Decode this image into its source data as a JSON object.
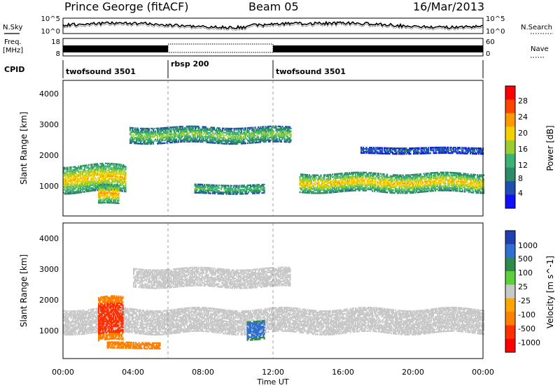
{
  "header": {
    "station": "Prince George (fitACF)",
    "beam": "Beam 05",
    "date": "16/Mar/2013"
  },
  "noise_panel": {
    "left_label": "N.Sky",
    "right_label": "N.Search",
    "left_ticks": [
      "10^5",
      "10^0"
    ],
    "right_ticks": [
      "10^5",
      "10^0"
    ]
  },
  "freq_panel": {
    "left_label_line1": "Freq.",
    "left_label_line2": "[MHz]",
    "left_ticks": [
      "18",
      "8"
    ],
    "right_label": "Nave",
    "right_ticks": [
      "60",
      "0"
    ]
  },
  "cpid_panel": {
    "label": "CPID",
    "segments": [
      {
        "name": "twofsound 3501",
        "start_hour": 0,
        "end_hour": 6
      },
      {
        "name": "rbsp 200",
        "start_hour": 6,
        "end_hour": 12
      },
      {
        "name": "twofsound 3501",
        "start_hour": 12,
        "end_hour": 24
      }
    ]
  },
  "chart_data": [
    {
      "type": "heatmap",
      "panel": "power",
      "ylabel": "Slant Range [km]",
      "ylim": [
        180,
        4600
      ],
      "yticks": [
        "1000",
        "2000",
        "3000",
        "4000"
      ],
      "xlim": [
        0,
        24
      ],
      "colorbar": {
        "label": "Power [dB]",
        "ticks": [
          "4",
          "8",
          "12",
          "16",
          "20",
          "24",
          "28"
        ],
        "colors": [
          "#1010ff",
          "#1f4fb3",
          "#2f8a6a",
          "#3cb371",
          "#9acd32",
          "#f5d000",
          "#ff9900",
          "#ff4500",
          "#ff0000"
        ]
      },
      "features": [
        {
          "hour_start": 0.0,
          "hour_end": 3.6,
          "range_center_km": 1400,
          "range_half_width_km": 450,
          "power_db": 24
        },
        {
          "hour_start": 2.0,
          "hour_end": 3.2,
          "range_center_km": 850,
          "range_half_width_km": 300,
          "power_db": 26
        },
        {
          "hour_start": 3.8,
          "hour_end": 13.0,
          "range_center_km": 2800,
          "range_half_width_km": 250,
          "power_db": 18
        },
        {
          "hour_start": 7.5,
          "hour_end": 11.5,
          "range_center_km": 1050,
          "range_half_width_km": 150,
          "power_db": 16
        },
        {
          "hour_start": 13.5,
          "hour_end": 24.0,
          "range_center_km": 1250,
          "range_half_width_km": 300,
          "power_db": 24
        },
        {
          "hour_start": 17.0,
          "hour_end": 24.0,
          "range_center_km": 2300,
          "range_half_width_km": 100,
          "power_db": 8
        }
      ]
    },
    {
      "type": "heatmap",
      "panel": "velocity",
      "ylabel": "Slant Range [km]",
      "ylim": [
        180,
        4600
      ],
      "yticks": [
        "1000",
        "2000",
        "3000",
        "4000"
      ],
      "xlim": [
        0,
        24
      ],
      "xticks": [
        "00:00",
        "04:00",
        "08:00",
        "12:00",
        "16:00",
        "20:00",
        "00:00"
      ],
      "xlabel": "Time UT",
      "colorbar": {
        "label": "Velocity [m s^-1]",
        "ticks": [
          "1000",
          "500",
          "100",
          "25",
          "-25",
          "-100",
          "-500",
          "-1000"
        ],
        "colors": [
          "#1f3fb3",
          "#2f6fd0",
          "#2f8a4a",
          "#5ccf3c",
          "#c8c8c8",
          "#ffa500",
          "#ff8000",
          "#ff3000",
          "#ff0000"
        ]
      },
      "features": [
        {
          "hour_start": 0.0,
          "hour_end": 24.0,
          "range_center_km": 1400,
          "range_half_width_km": 400,
          "velocity_ms": 0
        },
        {
          "hour_start": 2.0,
          "hour_end": 3.4,
          "range_center_km": 1400,
          "range_half_width_km": 700,
          "velocity_ms": -700
        },
        {
          "hour_start": 2.5,
          "hour_end": 5.5,
          "range_center_km": 600,
          "range_half_width_km": 100,
          "velocity_ms": -300
        },
        {
          "hour_start": 4.0,
          "hour_end": 13.0,
          "range_center_km": 2800,
          "range_half_width_km": 300,
          "velocity_ms": 0
        },
        {
          "hour_start": 10.5,
          "hour_end": 11.5,
          "range_center_km": 1100,
          "range_half_width_km": 300,
          "velocity_ms": 600
        }
      ]
    }
  ]
}
